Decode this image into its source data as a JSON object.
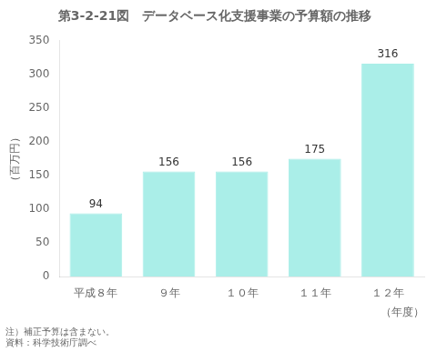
{
  "chart_data": {
    "type": "bar",
    "title": "第3-2-21図　データベース化支援事業の予算額の推移",
    "ylabel": "（百万円）",
    "xlabel": "（年度）",
    "categories": [
      "平成８年",
      "９年",
      "１０年",
      "１１年",
      "１２年"
    ],
    "values": [
      94,
      156,
      156,
      175,
      316
    ],
    "color": "#aaeee8",
    "ylim": [
      0,
      350
    ],
    "yticks": [
      0,
      50,
      100,
      150,
      200,
      250,
      300,
      350
    ],
    "grid": false,
    "data_labels": true,
    "annotations": [
      "注）補正予算は含まない。",
      "資料：科学技術庁調べ"
    ]
  }
}
